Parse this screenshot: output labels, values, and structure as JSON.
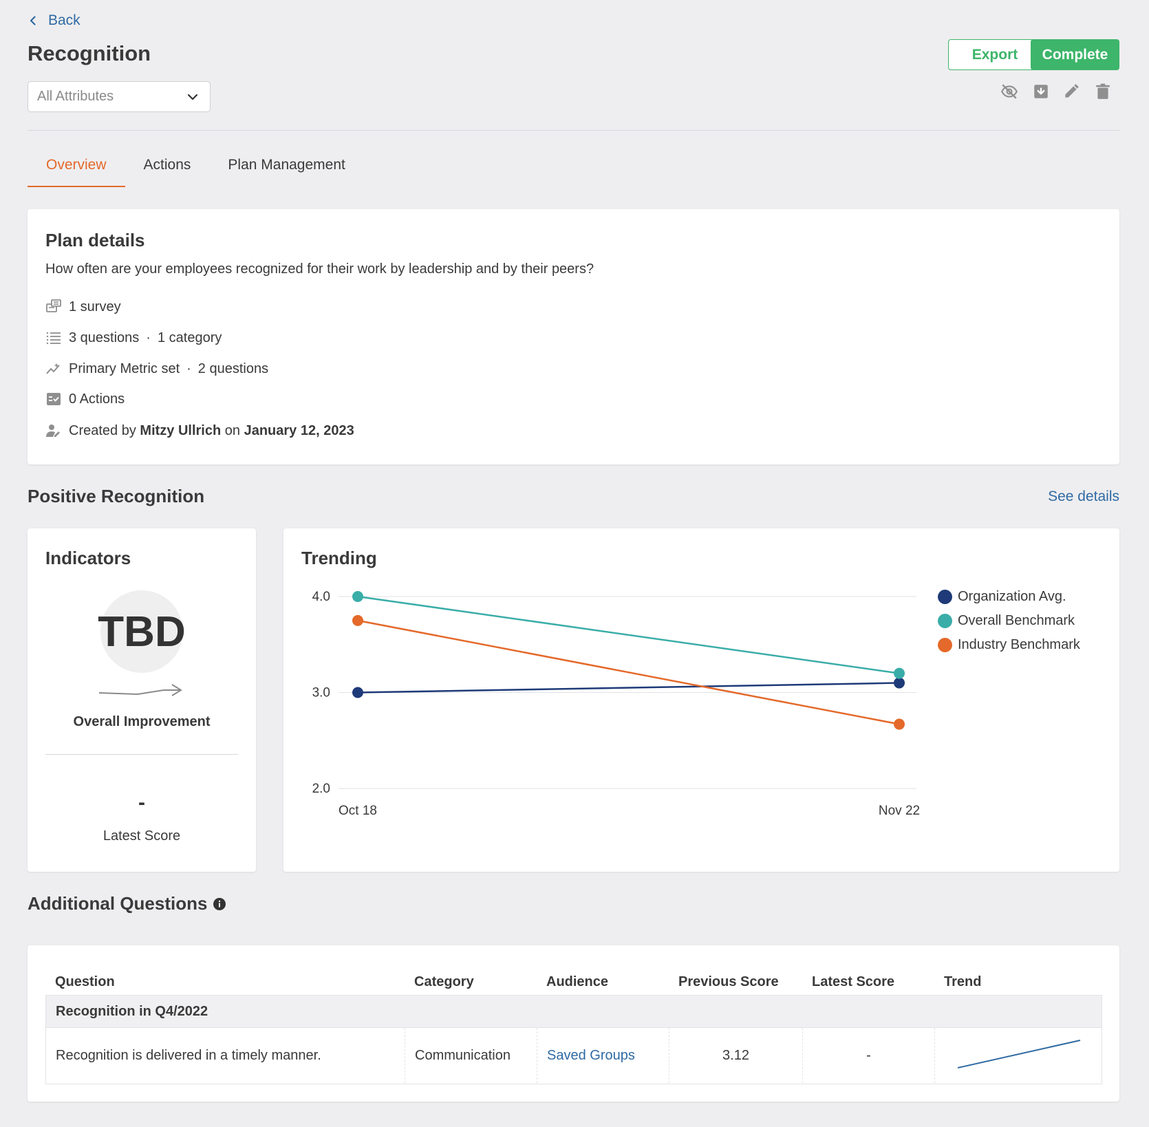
{
  "nav": {
    "back_label": "Back"
  },
  "header": {
    "title": "Recognition",
    "attribute_select": "All Attributes",
    "export_label": "Export",
    "complete_label": "Complete",
    "icons": [
      "hide-icon",
      "archive-icon",
      "edit-icon",
      "delete-icon"
    ]
  },
  "tabs": [
    {
      "label": "Overview",
      "active": true
    },
    {
      "label": "Actions",
      "active": false
    },
    {
      "label": "Plan Management",
      "active": false
    }
  ],
  "plan": {
    "title": "Plan details",
    "description": "How often are your employees recognized for their work by leadership and by their peers?",
    "surveys": "1 survey",
    "questions": "3 questions",
    "categories": "1 category",
    "metric": "Primary Metric set",
    "metric_questions": "2 questions",
    "actions": "0 Actions",
    "created_prefix": "Created by",
    "created_by": "Mitzy Ullrich",
    "created_on_word": "on",
    "created_date": "January 12, 2023",
    "separator": "·"
  },
  "positive": {
    "title": "Positive Recognition",
    "see_details": "See details",
    "indicators": {
      "title": "Indicators",
      "badge": "TBD",
      "improvement_label": "Overall Improvement",
      "latest_value": "-",
      "latest_label": "Latest Score"
    },
    "trending_title": "Trending"
  },
  "chart_data": {
    "type": "line",
    "title": "Trending",
    "x": [
      "Oct 18",
      "Nov 22"
    ],
    "ylim": [
      2.0,
      4.0
    ],
    "yticks": [
      "4.0",
      "3.0",
      "2.0"
    ],
    "grid": true,
    "legend_position": "right",
    "series": [
      {
        "name": "Organization Avg.",
        "color": "#1e3a78",
        "values": [
          3.0,
          3.1
        ]
      },
      {
        "name": "Overall Benchmark",
        "color": "#3aada8",
        "values": [
          4.0,
          3.2
        ]
      },
      {
        "name": "Industry Benchmark",
        "color": "#e4692a",
        "values": [
          3.75,
          2.67
        ]
      }
    ]
  },
  "additional": {
    "title": "Additional Questions",
    "columns": [
      "Question",
      "Category",
      "Audience",
      "Previous Score",
      "Latest Score",
      "Trend"
    ],
    "group": "Recognition in Q4/2022",
    "rows": [
      {
        "question": "Recognition is delivered in a timely manner.",
        "category": "Communication",
        "audience": "Saved Groups",
        "previous": "3.12",
        "latest": "-"
      }
    ]
  },
  "colors": {
    "accent": "#e4692a",
    "primary": "#3db56a",
    "link": "#2f6aa3"
  }
}
